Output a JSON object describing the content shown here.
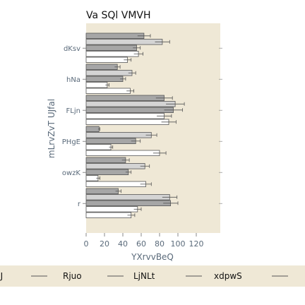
{
  "chart_data": {
    "type": "bar",
    "orientation": "horizontal",
    "title": "Va SQl VMVH",
    "xlabel": "YXrvvBeQ",
    "ylabel": "mLrvZvT UJfal",
    "xlim": [
      0,
      120
    ],
    "xticks": [
      0,
      20,
      40,
      60,
      80,
      100,
      120
    ],
    "categories": [
      "dKsv",
      "hNa",
      "FLjn",
      "PHgE",
      "owzK",
      "r"
    ],
    "series": [
      {
        "name": "nobJ",
        "color": "#a6a6a6",
        "values": [
          63,
          34,
          85,
          14,
          43,
          35
        ],
        "errors": [
          7,
          3,
          9,
          1,
          4,
          3
        ]
      },
      {
        "name": "Rjuo",
        "color": "#d4d4d4",
        "values": [
          83,
          50,
          97,
          71,
          64,
          91
        ],
        "errors": [
          8,
          4,
          10,
          6,
          5,
          8
        ]
      },
      {
        "name": "LjNLt",
        "color": "#a6a6a6",
        "values": [
          55,
          40,
          95,
          54,
          46,
          92
        ],
        "errors": [
          4,
          3,
          10,
          5,
          3,
          8
        ]
      },
      {
        "name": "xdpwS",
        "color": "#ffffff",
        "values": [
          57,
          23,
          85,
          27,
          13,
          56
        ],
        "errors": [
          5,
          2,
          8,
          2,
          2,
          4
        ]
      },
      {
        "name": "",
        "color": "#ffffff",
        "values": [
          45,
          48,
          90,
          80,
          65,
          49
        ],
        "errors": [
          4,
          4,
          8,
          7,
          6,
          4
        ]
      }
    ],
    "grid": false,
    "legend": "bottom"
  },
  "style": {
    "plot_bg": "#efe8d6",
    "legend_bg": "#efe8d6",
    "bar_stroke": "#555555",
    "errorbar": "#555555"
  }
}
